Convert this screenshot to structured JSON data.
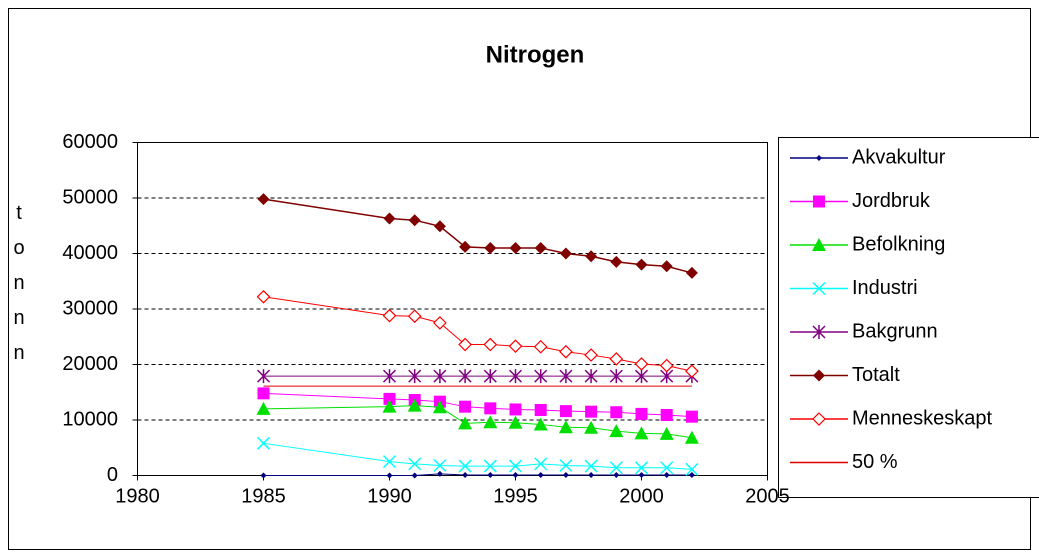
{
  "chart_data": {
    "type": "line",
    "title": "Nitrogen",
    "y_label": "tonnn",
    "x": [
      1985,
      1990,
      1991,
      1992,
      1993,
      1994,
      1995,
      1996,
      1997,
      1998,
      1999,
      2000,
      2001,
      2002
    ],
    "xlim": [
      1980,
      2005
    ],
    "xticks": [
      1980,
      1985,
      1990,
      1995,
      2000,
      2005
    ],
    "ylim": [
      0,
      60000
    ],
    "yticks": [
      0,
      10000,
      20000,
      30000,
      40000,
      50000,
      60000
    ],
    "grid": true,
    "legend": "right",
    "series": [
      {
        "name": "Akvakultur",
        "color": "#000080",
        "marker": "diamond",
        "values": [
          0,
          0,
          0,
          300,
          100,
          100,
          100,
          100,
          100,
          100,
          100,
          100,
          100,
          100
        ]
      },
      {
        "name": "Jordbruk",
        "color": "#ff00ff",
        "marker": "square",
        "values": [
          14800,
          13800,
          13600,
          13300,
          12400,
          12100,
          11900,
          11800,
          11600,
          11500,
          11400,
          11100,
          10900,
          10600
        ]
      },
      {
        "name": "Befolkning",
        "color": "#00e000",
        "marker": "triangle",
        "values": [
          12000,
          12400,
          12600,
          12300,
          9400,
          9600,
          9500,
          9200,
          8700,
          8600,
          8000,
          7600,
          7500,
          6800
        ]
      },
      {
        "name": "Industri",
        "color": "#00ffff",
        "marker": "x",
        "values": [
          5800,
          2500,
          2100,
          1800,
          1700,
          1700,
          1700,
          2100,
          1800,
          1700,
          1400,
          1400,
          1400,
          1100
        ]
      },
      {
        "name": "Bakgrunn",
        "color": "#800080",
        "marker": "star",
        "values": [
          17900,
          17900,
          17900,
          17900,
          17900,
          17900,
          17900,
          17900,
          17900,
          17900,
          17900,
          17900,
          17900,
          17900
        ]
      },
      {
        "name": "Totalt",
        "color": "#800000",
        "marker": "diamond-large",
        "values": [
          49800,
          46300,
          46000,
          44900,
          41200,
          41000,
          41000,
          41000,
          40000,
          39500,
          38500,
          38000,
          37700,
          36500
        ]
      },
      {
        "name": "Menneskeskapt",
        "color": "#ff0000",
        "marker": "diamond-open",
        "values": [
          32200,
          28800,
          28700,
          27500,
          23600,
          23600,
          23300,
          23200,
          22300,
          21700,
          21000,
          20100,
          19800,
          18800
        ]
      },
      {
        "name": "50 %",
        "color": "#e00000",
        "marker": "none",
        "values": [
          16100,
          16100,
          16100,
          16100,
          16100,
          16100,
          16100,
          16100,
          16100,
          16100,
          16100,
          16100,
          16100,
          16100
        ]
      }
    ]
  }
}
